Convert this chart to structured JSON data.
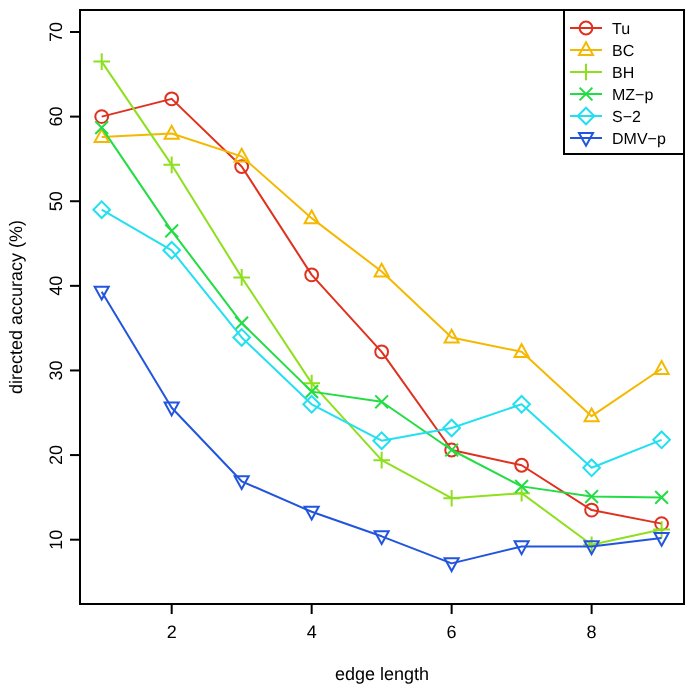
{
  "chart_data": {
    "type": "line",
    "xlabel": "edge length",
    "ylabel": "directed accuracy (%)",
    "x": [
      1,
      2,
      3,
      4,
      5,
      6,
      7,
      8,
      9
    ],
    "xlim": [
      0.69,
      9.32
    ],
    "ylim": [
      2.4,
      72.6
    ],
    "xticks": [
      2,
      4,
      6,
      8
    ],
    "yticks": [
      10,
      20,
      30,
      40,
      50,
      60,
      70
    ],
    "grid": false,
    "legend": "top right",
    "line_style": "solid",
    "series": [
      {
        "name": "Tu",
        "color": "#e0301e",
        "marker": "circle",
        "values": [
          60,
          62.1,
          54.1,
          41.3,
          32.2,
          20.6,
          18.8,
          13.5,
          11.9
        ]
      },
      {
        "name": "BC",
        "color": "#f5b800",
        "marker": "triangle",
        "values": [
          57.6,
          58,
          55.3,
          48,
          41.7,
          33.9,
          32.2,
          24.6,
          30.2
        ]
      },
      {
        "name": "BH",
        "color": "#8ee01e",
        "marker": "cross",
        "values": [
          66.5,
          54.3,
          41,
          28.5,
          19.4,
          14.9,
          15.5,
          9.4,
          11.2
        ]
      },
      {
        "name": "MZ−p",
        "color": "#22dd44",
        "marker": "x",
        "values": [
          58.7,
          46.5,
          35.6,
          27.5,
          26.3,
          20.6,
          16.3,
          15.1,
          15
        ]
      },
      {
        "name": "S−2",
        "color": "#22e0f0",
        "marker": "diamond",
        "values": [
          49,
          44.2,
          33.9,
          26,
          21.7,
          23.2,
          26,
          18.5,
          21.8
        ]
      },
      {
        "name": "DMV−p",
        "color": "#2255dd",
        "marker": "triangle-down",
        "values": [
          39.3,
          25.6,
          16.9,
          13.3,
          10.4,
          7.2,
          9.2,
          9.2,
          10.2
        ]
      }
    ]
  }
}
